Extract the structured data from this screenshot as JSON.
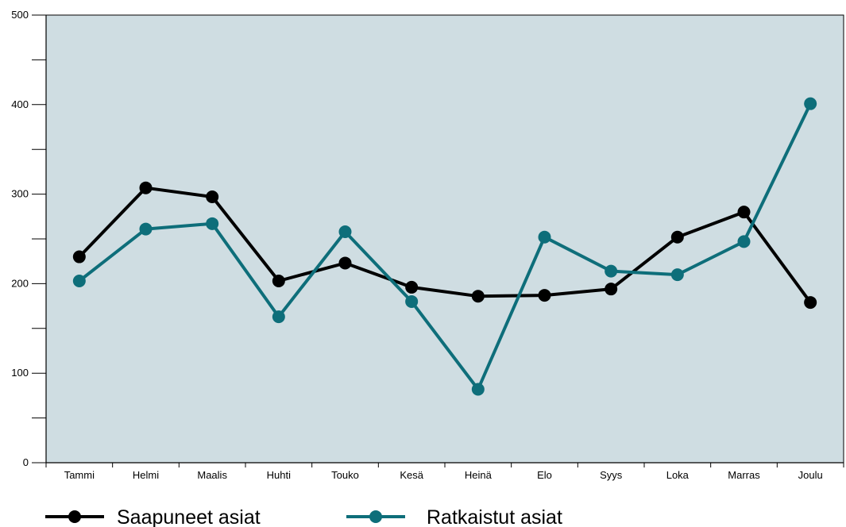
{
  "chart_data": {
    "type": "line",
    "categories": [
      "Tammi",
      "Helmi",
      "Maalis",
      "Huhti",
      "Touko",
      "Kesä",
      "Heinä",
      "Elo",
      "Syys",
      "Loka",
      "Marras",
      "Joulu"
    ],
    "series": [
      {
        "name": "Saapuneet asiat",
        "values": [
          230,
          307,
          297,
          203,
          223,
          196,
          186,
          187,
          194,
          252,
          280,
          179
        ],
        "color": "#000000"
      },
      {
        "name": "Ratkaistut asiat",
        "values": [
          203,
          261,
          267,
          163,
          258,
          180,
          82,
          252,
          214,
          210,
          247,
          401
        ],
        "color": "#0e6e7a"
      }
    ],
    "ylim": [
      0,
      500
    ],
    "yticks": [
      0,
      100,
      200,
      300,
      400,
      500
    ],
    "plot_background": "#cfdde2",
    "grid": false,
    "legend_position": "bottom"
  }
}
